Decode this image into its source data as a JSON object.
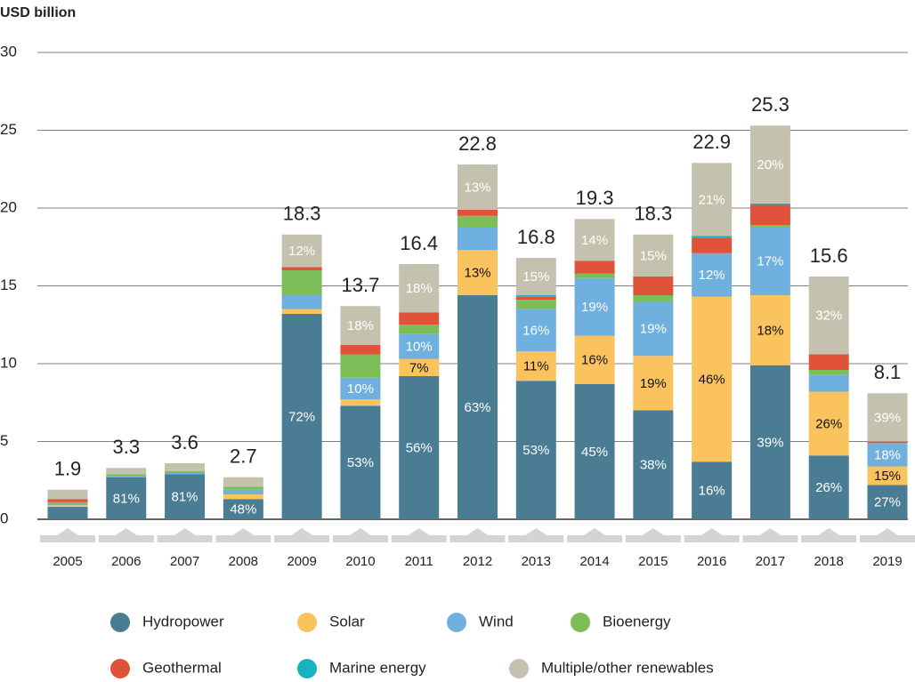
{
  "chart_data": {
    "type": "bar",
    "stacked": true,
    "y_label": "USD billion",
    "categories": [
      "2005",
      "2006",
      "2007",
      "2008",
      "2009",
      "2010",
      "2011",
      "2012",
      "2013",
      "2014",
      "2015",
      "2016",
      "2017",
      "2018",
      "2019"
    ],
    "ylim": [
      0,
      30
    ],
    "yticks": [
      0,
      5,
      10,
      15,
      20,
      25,
      30
    ],
    "grid": true,
    "totals": [
      1.9,
      3.3,
      3.6,
      2.7,
      18.3,
      13.7,
      16.4,
      22.8,
      16.8,
      19.3,
      18.3,
      22.9,
      25.3,
      15.6,
      8.1
    ],
    "series": [
      {
        "name": "Hydropower",
        "color": "#4a7d94",
        "label_color": "#ffffff",
        "values": [
          0.8,
          2.7,
          2.9,
          1.3,
          13.2,
          7.3,
          9.2,
          14.4,
          8.9,
          8.7,
          7.0,
          3.7,
          9.9,
          4.1,
          2.2
        ],
        "share_labels": [
          null,
          "81%",
          "81%",
          "48%",
          "72%",
          "53%",
          "56%",
          "63%",
          "53%",
          "45%",
          "38%",
          "16%",
          "39%",
          "26%",
          "27%"
        ]
      },
      {
        "name": "Solar",
        "color": "#fbc35e",
        "label_color": "#111111",
        "values": [
          0.1,
          0,
          0,
          0.3,
          0.3,
          0.4,
          1.1,
          2.9,
          1.9,
          3.1,
          3.5,
          10.6,
          4.5,
          4.1,
          1.2
        ],
        "share_labels": [
          null,
          null,
          null,
          null,
          null,
          null,
          "7%",
          "13%",
          "11%",
          "16%",
          "19%",
          "46%",
          "18%",
          "26%",
          "15%"
        ]
      },
      {
        "name": "Wind",
        "color": "#6fb0de",
        "label_color": "#ffffff",
        "values": [
          0.1,
          0.1,
          0.1,
          0.3,
          0.9,
          1.4,
          1.6,
          1.5,
          2.7,
          3.7,
          3.5,
          2.8,
          4.4,
          1.1,
          1.5
        ],
        "share_labels": [
          null,
          null,
          null,
          null,
          null,
          "10%",
          "10%",
          null,
          "16%",
          "19%",
          "19%",
          "12%",
          "17%",
          null,
          "18%"
        ]
      },
      {
        "name": "Bioenergy",
        "color": "#7cbd57",
        "label_color": "#ffffff",
        "values": [
          0.1,
          0.1,
          0.1,
          0.2,
          1.6,
          1.5,
          0.6,
          0.7,
          0.6,
          0.3,
          0.4,
          0,
          0.1,
          0.3,
          0
        ]
      },
      {
        "name": "Geothermal",
        "color": "#e0533a",
        "label_color": "#ffffff",
        "values": [
          0.2,
          0,
          0,
          0,
          0.2,
          0.6,
          0.8,
          0.4,
          0.2,
          0.8,
          1.2,
          1.0,
          1.3,
          1.0,
          0.1
        ]
      },
      {
        "name": "Marine energy",
        "color": "#17b3c2",
        "label_color": "#ffffff",
        "values": [
          0,
          0,
          0,
          0,
          0,
          0,
          0,
          0,
          0.1,
          0,
          0,
          0.1,
          0.1,
          0,
          0
        ]
      },
      {
        "name": "Multiple/other renewables",
        "color": "#c4c2ae",
        "label_color": "#ffffff",
        "values": [
          0.6,
          0.4,
          0.5,
          0.6,
          2.1,
          2.5,
          3.1,
          2.9,
          2.4,
          2.7,
          2.7,
          4.7,
          5.0,
          5.0,
          3.1
        ],
        "share_labels": [
          null,
          null,
          null,
          null,
          "12%",
          "18%",
          "18%",
          "13%",
          "15%",
          "14%",
          "15%",
          "21%",
          "20%",
          "32%",
          "39%"
        ]
      }
    ]
  }
}
